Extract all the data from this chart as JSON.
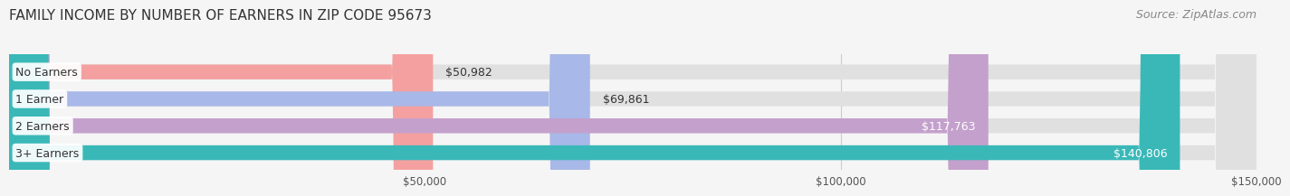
{
  "title": "FAMILY INCOME BY NUMBER OF EARNERS IN ZIP CODE 95673",
  "source": "Source: ZipAtlas.com",
  "categories": [
    "No Earners",
    "1 Earner",
    "2 Earners",
    "3+ Earners"
  ],
  "values": [
    50982,
    69861,
    117763,
    140806
  ],
  "bar_colors": [
    "#f4a0a0",
    "#a8b8e8",
    "#c4a0cc",
    "#3ab8b8"
  ],
  "label_colors": [
    "#333333",
    "#333333",
    "#ffffff",
    "#ffffff"
  ],
  "bar_bg_color": "#e0e0e0",
  "xmin": 0,
  "xmax": 150000,
  "xticks": [
    50000,
    100000,
    150000
  ],
  "xtick_labels": [
    "$50,000",
    "$100,000",
    "$150,000"
  ],
  "background_color": "#f5f5f5",
  "title_fontsize": 11,
  "source_fontsize": 9,
  "label_fontsize": 9,
  "value_fontsize": 9,
  "bar_height": 0.55,
  "fig_width": 14.06,
  "fig_height": 2.33
}
